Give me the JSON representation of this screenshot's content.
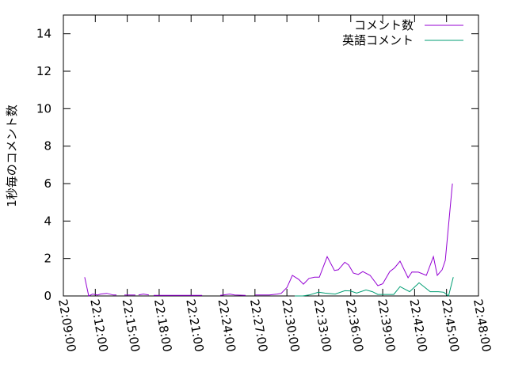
{
  "chart_data": {
    "type": "line",
    "title": "",
    "xlabel": "",
    "ylabel": "1秒毎のコメント数",
    "xlim": [
      "22:09:00",
      "22:48:00"
    ],
    "ylim": [
      0,
      15
    ],
    "x_ticks": [
      "22:09:00",
      "22:12:00",
      "22:15:00",
      "22:18:00",
      "22:21:00",
      "22:24:00",
      "22:27:00",
      "22:30:00",
      "22:33:00",
      "22:36:00",
      "22:39:00",
      "22:42:00",
      "22:45:00",
      "22:48:00"
    ],
    "y_ticks": [
      "0",
      "2",
      "4",
      "6",
      "8",
      "10",
      "12",
      "14"
    ],
    "grid": false,
    "legend_position": "top-right",
    "series": [
      {
        "name": "コメント数",
        "color": "#9400d3",
        "points": [
          [
            "22:11:00",
            1.0
          ],
          [
            "22:11:23",
            0
          ],
          [
            "22:11:45",
            0.1
          ],
          [
            "22:12:12",
            0.05
          ],
          [
            "22:12:30",
            0.1
          ],
          [
            "22:13:05",
            0.14
          ],
          [
            "22:13:41",
            0.05
          ],
          [
            "22:13:59",
            0.05
          ],
          null,
          [
            "22:14:44",
            0.05
          ],
          [
            "22:15:46",
            0.05
          ],
          null,
          [
            "22:16:04",
            0.05
          ],
          [
            "22:16:31",
            0.1
          ],
          [
            "22:17:02",
            0.05
          ],
          null,
          [
            "22:17:29",
            0.03
          ],
          [
            "22:22:02",
            0.03
          ],
          null,
          [
            "22:23:44",
            0.03
          ],
          [
            "22:24:38",
            0.1
          ],
          [
            "22:25:05",
            0.05
          ],
          [
            "22:26:07",
            0.03
          ],
          null,
          [
            "22:27:01",
            0.05
          ],
          [
            "22:28:21",
            0.05
          ],
          [
            "22:29:06",
            0.1
          ],
          [
            "22:29:28",
            0.14
          ],
          [
            "22:30:00",
            0.45
          ],
          [
            "22:30:31",
            1.1
          ],
          [
            "22:31:07",
            0.88
          ],
          [
            "22:31:33",
            0.63
          ],
          [
            "22:32:05",
            0.94
          ],
          [
            "22:32:36",
            1.0
          ],
          [
            "22:33:03",
            1.0
          ],
          [
            "22:33:47",
            2.1
          ],
          [
            "22:34:28",
            1.36
          ],
          [
            "22:34:50",
            1.4
          ],
          [
            "22:35:26",
            1.8
          ],
          [
            "22:35:48",
            1.65
          ],
          [
            "22:36:15",
            1.22
          ],
          [
            "22:36:42",
            1.15
          ],
          [
            "22:37:08",
            1.3
          ],
          [
            "22:37:49",
            1.1
          ],
          [
            "22:38:33",
            0.55
          ],
          [
            "22:39:00",
            0.65
          ],
          [
            "22:39:40",
            1.3
          ],
          [
            "22:40:07",
            1.5
          ],
          [
            "22:40:38",
            1.86
          ],
          [
            "22:41:23",
            0.97
          ],
          [
            "22:41:45",
            1.28
          ],
          [
            "22:42:21",
            1.27
          ],
          [
            "22:43:06",
            1.1
          ],
          [
            "22:43:46",
            2.1
          ],
          [
            "22:44:08",
            1.1
          ],
          [
            "22:44:35",
            1.4
          ],
          [
            "22:44:53",
            1.9
          ],
          [
            "22:45:33",
            6.0
          ]
        ]
      },
      {
        "name": "英語コメント",
        "color": "#009e73",
        "points": [
          [
            "22:30:44",
            0
          ],
          [
            "22:31:29",
            0
          ],
          [
            "22:32:05",
            0.05
          ],
          [
            "22:32:58",
            0.2
          ],
          [
            "22:33:34",
            0.15
          ],
          [
            "22:34:32",
            0.1
          ],
          [
            "22:35:26",
            0.28
          ],
          [
            "22:35:57",
            0.27
          ],
          [
            "22:36:33",
            0.15
          ],
          [
            "22:37:26",
            0.32
          ],
          [
            "22:38:02",
            0.23
          ],
          [
            "22:38:33",
            0.08
          ],
          [
            "22:40:02",
            0.08
          ],
          [
            "22:40:38",
            0.5
          ],
          [
            "22:41:32",
            0.23
          ],
          [
            "22:42:25",
            0.7
          ],
          [
            "22:43:28",
            0.23
          ],
          [
            "22:44:13",
            0.23
          ],
          [
            "22:44:44",
            0.2
          ],
          [
            "22:45:11",
            0
          ],
          [
            "22:45:38",
            1.0
          ]
        ]
      }
    ]
  }
}
